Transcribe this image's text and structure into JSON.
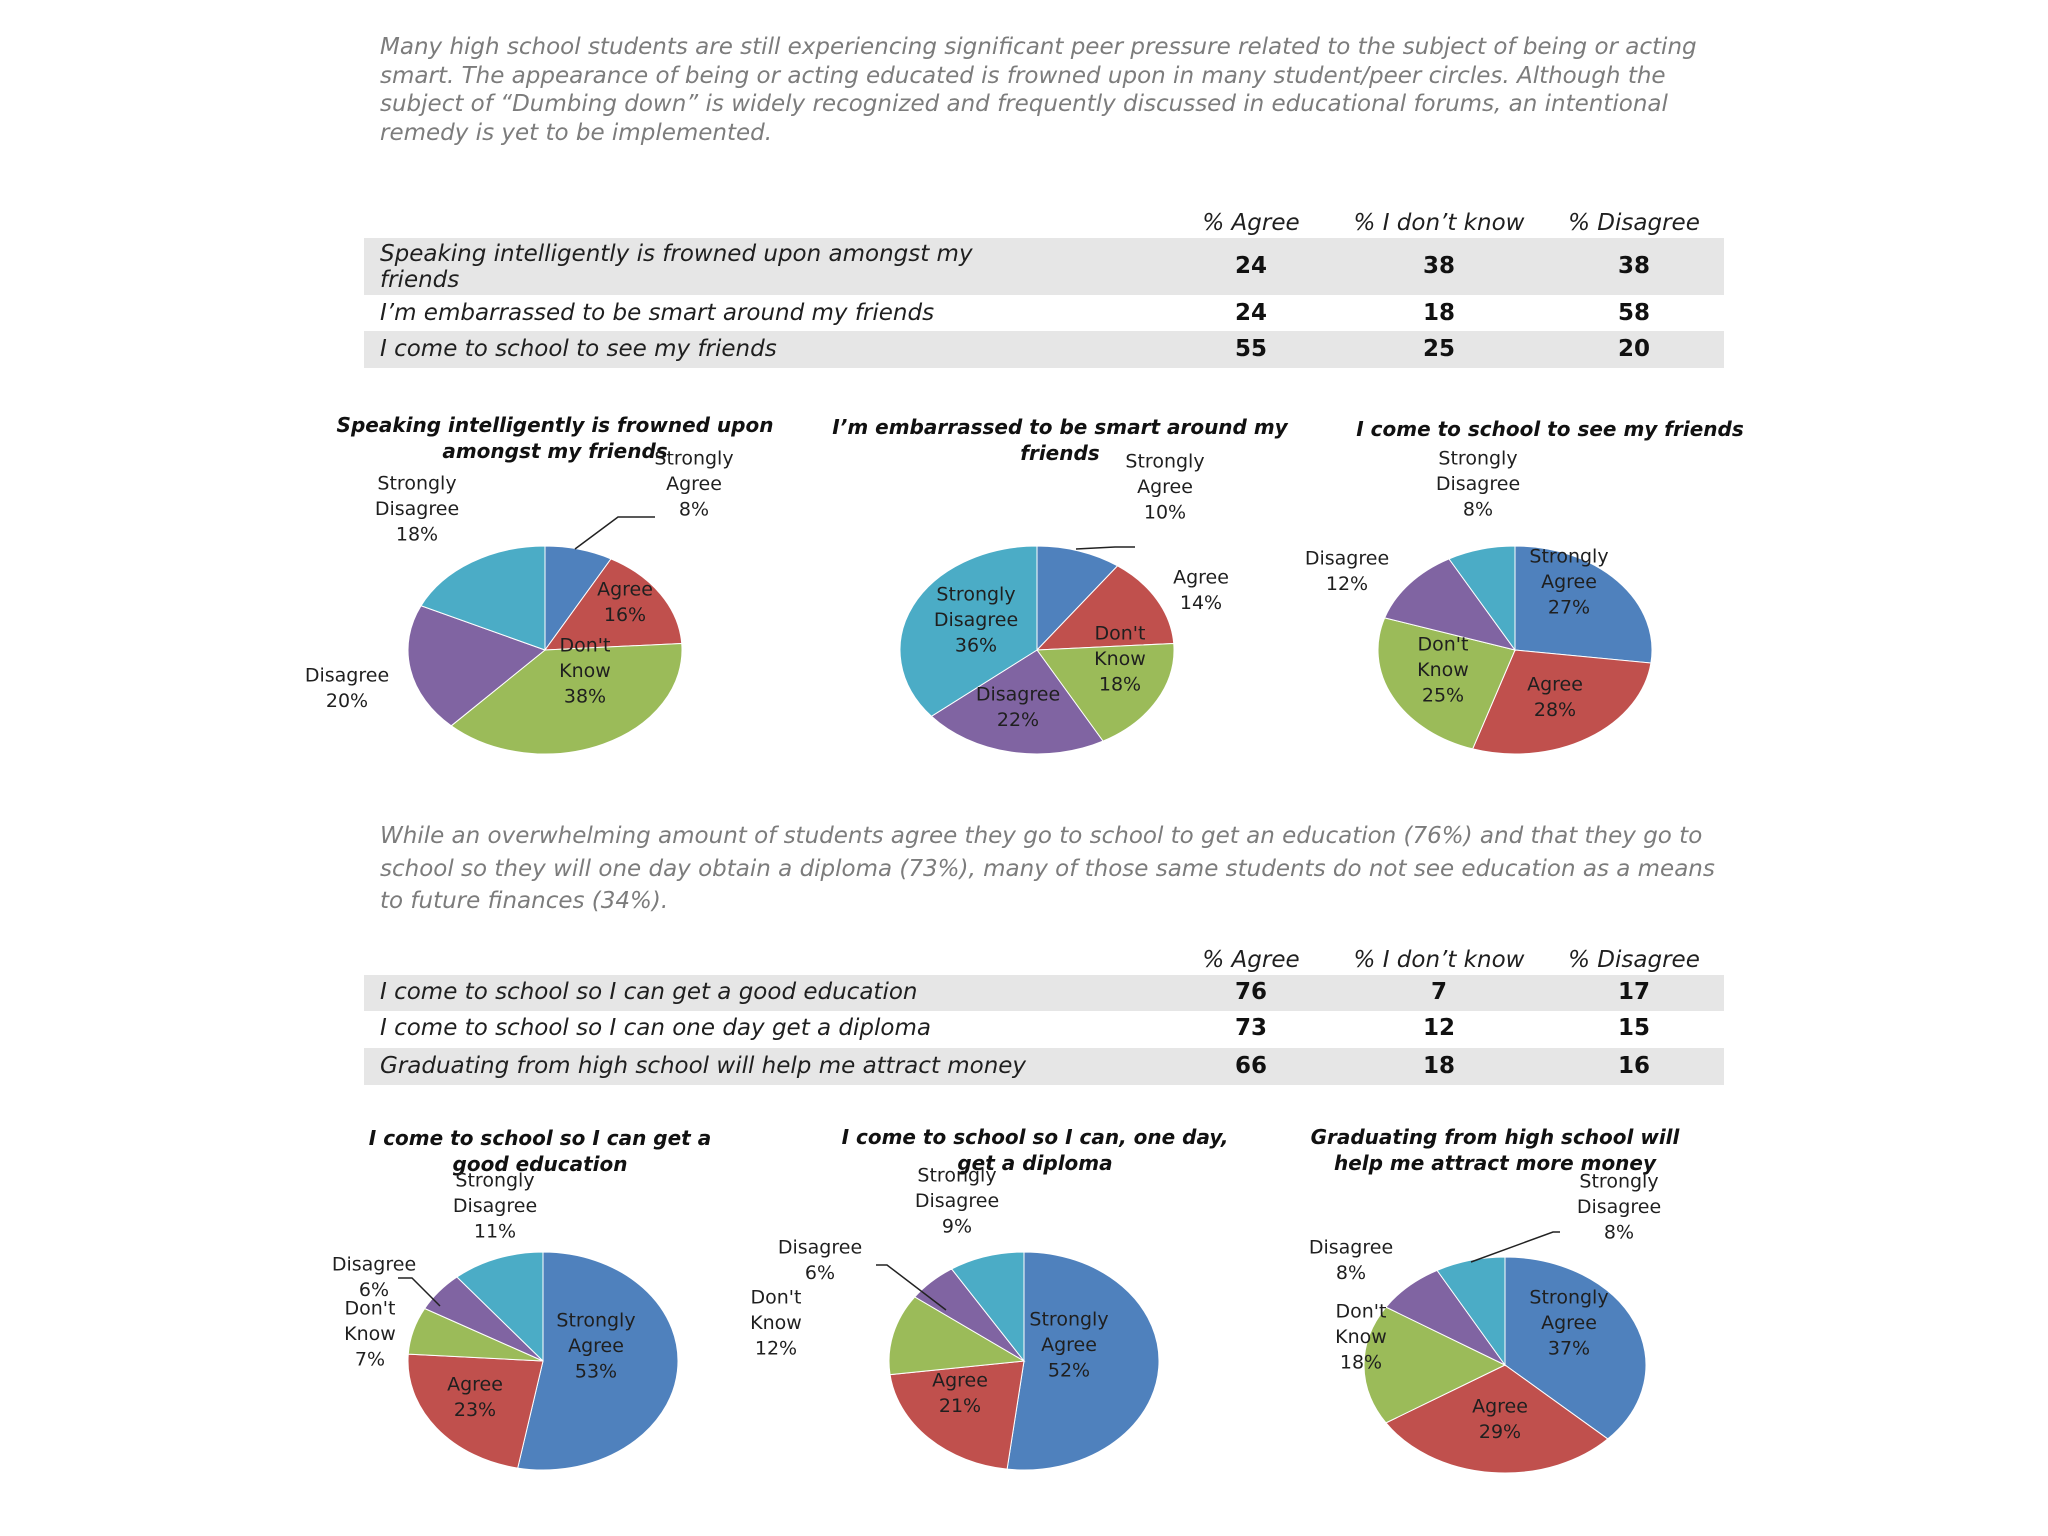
{
  "intro1": "Many high school students are still experiencing significant peer pressure related to the subject of being or acting smart. The appearance of being or acting educated is frowned upon in many student/peer circles. Although the subject of “Dumbing down” is widely recognized and frequently discussed in educational forums, an intentional remedy is yet to be implemented.",
  "intro2": "While an overwhelming amount of students agree they go to school to get an education (76%) and that they go to school so they will one day obtain a diploma (73%), many of those same students do not see education as a means to future finances (34%).",
  "table_headers": [
    "% Agree",
    "% I don’t know",
    "% Disagree"
  ],
  "table1": [
    {
      "label": "Speaking intelligently is frowned upon amongst my friends",
      "agree": "24",
      "dontknow": "38",
      "disagree": "38"
    },
    {
      "label": "I’m embarrassed to be smart around my friends",
      "agree": "24",
      "dontknow": "18",
      "disagree": "58"
    },
    {
      "label": "I come to school to see my friends",
      "agree": "55",
      "dontknow": "25",
      "disagree": "20"
    }
  ],
  "table2": [
    {
      "label": "I come to school so I can get a good education",
      "agree": "76",
      "dontknow": "7",
      "disagree": "17"
    },
    {
      "label": "I come to school so I can one day get a diploma",
      "agree": "73",
      "dontknow": "12",
      "disagree": "15"
    },
    {
      "label": "Graduating from high school will help me attract money",
      "agree": "66",
      "dontknow": "18",
      "disagree": "16"
    }
  ],
  "colors": {
    "Strongly Agree": "#4f81bd",
    "Agree": "#c0504d",
    "Don't Know": "#9bbb59",
    "Disagree": "#8064a2",
    "Strongly Disagree": "#4bacc6"
  },
  "chart_data": [
    {
      "type": "pie",
      "title": "Speaking intelligently is frowned upon amongst my friends",
      "categories": [
        "Strongly Agree",
        "Agree",
        "Don't Know",
        "Disagree",
        "Strongly Disagree"
      ],
      "values": [
        8,
        16,
        38,
        20,
        18
      ],
      "labels": [
        [
          "Strongly",
          "Agree",
          "8%"
        ],
        [
          "Agree",
          "16%"
        ],
        [
          "Don't",
          "Know",
          "38%"
        ],
        [
          "Disagree",
          "20%"
        ],
        [
          "Strongly",
          "Disagree",
          "18%"
        ]
      ]
    },
    {
      "type": "pie",
      "title": "I’m embarrassed to be smart around my friends",
      "categories": [
        "Strongly Agree",
        "Agree",
        "Don't Know",
        "Disagree",
        "Strongly Disagree"
      ],
      "values": [
        10,
        14,
        18,
        22,
        36
      ],
      "labels": [
        [
          "Strongly",
          "Agree",
          "10%"
        ],
        [
          "Agree",
          "14%"
        ],
        [
          "Don't",
          "Know",
          "18%"
        ],
        [
          "Disagree",
          "22%"
        ],
        [
          "Strongly",
          "Disagree",
          "36%"
        ]
      ]
    },
    {
      "type": "pie",
      "title": "I come to school to see my friends",
      "categories": [
        "Strongly Agree",
        "Agree",
        "Don't Know",
        "Disagree",
        "Strongly Disagree"
      ],
      "values": [
        27,
        28,
        25,
        12,
        8
      ],
      "labels": [
        [
          "Strongly",
          "Agree",
          "27%"
        ],
        [
          "Agree",
          "28%"
        ],
        [
          "Don't",
          "Know",
          "25%"
        ],
        [
          "Disagree",
          "12%"
        ],
        [
          "Strongly",
          "Disagree",
          "8%"
        ]
      ]
    },
    {
      "type": "pie",
      "title": "I  come to school so I can get a good education",
      "categories": [
        "Strongly Agree",
        "Agree",
        "Don't Know",
        "Disagree",
        "Strongly Disagree"
      ],
      "values": [
        53,
        23,
        7,
        6,
        11
      ],
      "labels": [
        [
          "Strongly",
          "Agree",
          "53%"
        ],
        [
          "Agree",
          "23%"
        ],
        [
          "Don't",
          "Know",
          "7%"
        ],
        [
          "Disagree",
          "6%"
        ],
        [
          "Strongly",
          "Disagree",
          "11%"
        ]
      ]
    },
    {
      "type": "pie",
      "title": "I come to school so I can, one day, get a diploma",
      "categories": [
        "Strongly Agree",
        "Agree",
        "Don't Know",
        "Disagree",
        "Strongly Disagree"
      ],
      "values": [
        52,
        21,
        12,
        6,
        9
      ],
      "labels": [
        [
          "Strongly",
          "Agree",
          "52%"
        ],
        [
          "Agree",
          "21%"
        ],
        [
          "Don't",
          "Know",
          "12%"
        ],
        [
          "Disagree",
          "6%"
        ],
        [
          "Strongly",
          "Disagree",
          "9%"
        ]
      ]
    },
    {
      "type": "pie",
      "title": "Graduating from high school will help me attract more money",
      "categories": [
        "Strongly Agree",
        "Agree",
        "Don't Know",
        "Disagree",
        "Strongly Disagree"
      ],
      "values": [
        37,
        29,
        18,
        8,
        8
      ],
      "labels": [
        [
          "Strongly",
          "Agree",
          "37%"
        ],
        [
          "Agree",
          "29%"
        ],
        [
          "Don't",
          "Know",
          "18%"
        ],
        [
          "Disagree",
          "8%"
        ],
        [
          "Strongly",
          "Disagree",
          "8%"
        ]
      ]
    }
  ]
}
